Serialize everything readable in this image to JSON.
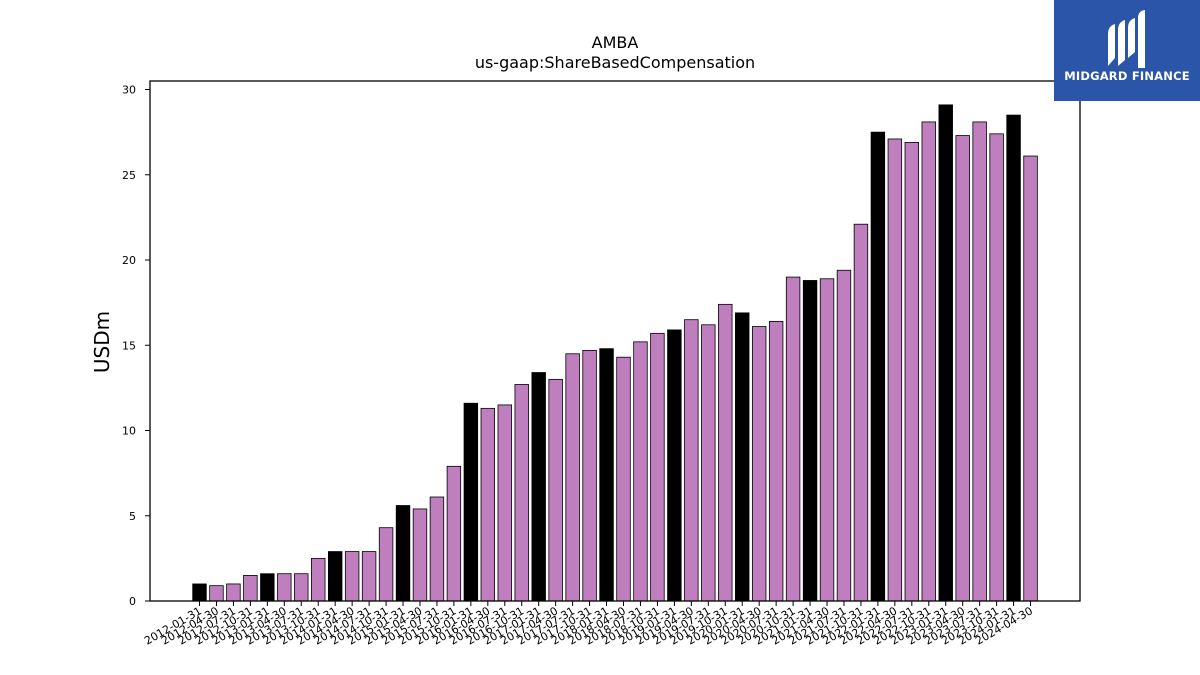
{
  "chart_data": {
    "type": "bar",
    "title": "AMBA",
    "subtitle": "us-gaap:ShareBasedCompensation",
    "xlabel": "",
    "ylabel": "USDm",
    "ylim": [
      0,
      30.5
    ],
    "yticks": [
      0,
      5,
      10,
      15,
      20,
      25,
      30
    ],
    "grid": false,
    "categories": [
      "2012-01-31",
      "2012-04-30",
      "2012-07-31",
      "2012-10-31",
      "2013-01-31",
      "2013-04-30",
      "2013-07-31",
      "2013-10-31",
      "2014-01-31",
      "2014-04-30",
      "2014-07-31",
      "2014-10-31",
      "2015-01-31",
      "2015-04-30",
      "2015-07-31",
      "2015-10-31",
      "2016-01-31",
      "2016-04-30",
      "2016-07-31",
      "2016-10-31",
      "2017-01-31",
      "2017-04-30",
      "2017-07-31",
      "2017-10-31",
      "2018-01-31",
      "2018-04-30",
      "2018-07-31",
      "2018-10-31",
      "2019-01-31",
      "2019-04-30",
      "2019-07-31",
      "2019-10-31",
      "2020-01-31",
      "2020-04-30",
      "2020-07-31",
      "2020-10-31",
      "2021-01-31",
      "2021-04-30",
      "2021-07-31",
      "2021-10-31",
      "2022-01-31",
      "2022-04-30",
      "2022-07-31",
      "2022-10-31",
      "2023-01-31",
      "2023-04-30",
      "2023-07-31",
      "2023-10-31",
      "2024-01-31",
      "2024-04-30"
    ],
    "values": [
      1.0,
      0.9,
      1.0,
      1.5,
      1.6,
      1.6,
      1.6,
      2.5,
      2.9,
      2.9,
      2.9,
      4.3,
      5.6,
      5.4,
      6.1,
      7.9,
      11.6,
      11.3,
      11.5,
      12.7,
      13.4,
      13.0,
      14.5,
      14.7,
      14.8,
      14.3,
      15.2,
      15.7,
      15.9,
      16.5,
      16.2,
      17.4,
      16.9,
      16.1,
      16.4,
      19.0,
      18.8,
      18.9,
      19.4,
      22.1,
      27.5,
      27.1,
      26.9,
      28.1,
      29.1,
      27.3,
      28.1,
      27.4,
      28.5,
      26.1
    ],
    "bar_colors": {
      "fiscal_q1": "#000000",
      "other": "#bf7fbf"
    }
  },
  "logo": {
    "text": "MIDGARD FINANCE"
  }
}
